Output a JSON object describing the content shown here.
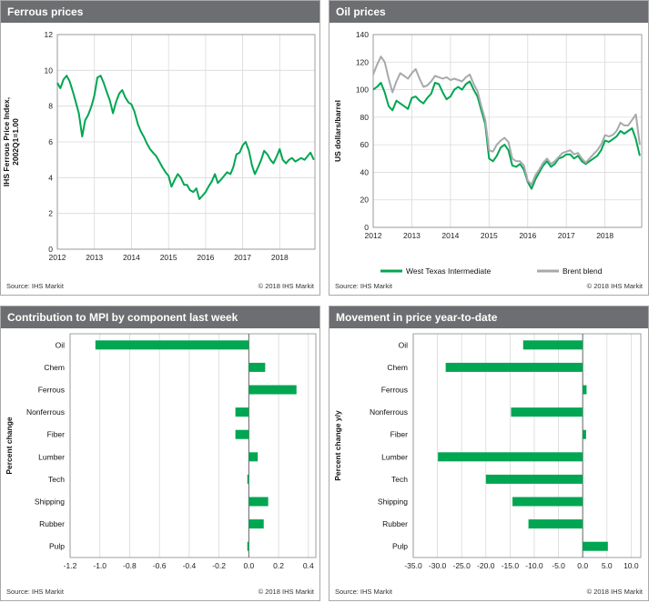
{
  "panels": {
    "p1": {
      "title": "Ferrous prices",
      "source": "Source: IHS Markit",
      "copyright": "© 2018 IHS Markit"
    },
    "p2": {
      "title": "Oil prices",
      "source": "Source: IHS Markit",
      "copyright": "© 2018 IHS Markit"
    },
    "p3": {
      "title": "Contribution to MPI by component last week",
      "source": "Source: IHS Markit",
      "copyright": "© 2018 IHS Markit"
    },
    "p4": {
      "title": "Movement in price year-to-date",
      "source": "Source: IHS Markit",
      "copyright": "© 2018 IHS Markit"
    }
  },
  "colors": {
    "green": "#00a651",
    "gray": "#a7a9ac",
    "grid": "#d9d9d9",
    "axis": "#555555"
  },
  "chart_data": [
    {
      "type": "line",
      "title": "Ferrous prices",
      "ylabel": "IHS Ferrous Price Index, 2002Q1=1.00",
      "xlabel": "",
      "xlim": [
        2012,
        2018.95
      ],
      "ylim": [
        0,
        12
      ],
      "yticks": [
        0,
        2,
        4,
        6,
        8,
        10,
        12
      ],
      "xticks": [
        2012,
        2013,
        2014,
        2015,
        2016,
        2017,
        2018
      ],
      "grid": true,
      "series": [
        {
          "name": "",
          "color": "#00a651",
          "x": [
            2012.0,
            2012.08,
            2012.17,
            2012.25,
            2012.33,
            2012.42,
            2012.5,
            2012.58,
            2012.67,
            2012.75,
            2012.83,
            2012.92,
            2013.0,
            2013.08,
            2013.17,
            2013.25,
            2013.33,
            2013.42,
            2013.5,
            2013.58,
            2013.67,
            2013.75,
            2013.83,
            2013.92,
            2014.0,
            2014.08,
            2014.17,
            2014.25,
            2014.33,
            2014.42,
            2014.5,
            2014.58,
            2014.67,
            2014.75,
            2014.83,
            2014.92,
            2015.0,
            2015.08,
            2015.17,
            2015.25,
            2015.33,
            2015.42,
            2015.5,
            2015.58,
            2015.67,
            2015.75,
            2015.83,
            2015.92,
            2016.0,
            2016.08,
            2016.17,
            2016.25,
            2016.33,
            2016.42,
            2016.5,
            2016.58,
            2016.67,
            2016.75,
            2016.83,
            2016.92,
            2017.0,
            2017.08,
            2017.17,
            2017.25,
            2017.33,
            2017.42,
            2017.5,
            2017.58,
            2017.67,
            2017.75,
            2017.83,
            2017.92,
            2018.0,
            2018.08,
            2018.17,
            2018.25,
            2018.33,
            2018.42,
            2018.5,
            2018.58,
            2018.67,
            2018.75,
            2018.83,
            2018.92
          ],
          "y": [
            9.3,
            9.0,
            9.5,
            9.7,
            9.4,
            8.8,
            8.2,
            7.6,
            6.3,
            7.2,
            7.5,
            8.0,
            8.6,
            9.6,
            9.7,
            9.3,
            8.8,
            8.3,
            7.6,
            8.2,
            8.7,
            8.9,
            8.5,
            8.2,
            8.1,
            7.7,
            7.0,
            6.6,
            6.3,
            5.9,
            5.6,
            5.4,
            5.2,
            4.9,
            4.6,
            4.3,
            4.1,
            3.5,
            3.9,
            4.2,
            4.0,
            3.6,
            3.6,
            3.3,
            3.2,
            3.4,
            2.8,
            3.0,
            3.2,
            3.5,
            3.8,
            4.2,
            3.7,
            3.9,
            4.1,
            4.3,
            4.2,
            4.6,
            5.3,
            5.4,
            5.8,
            6.0,
            5.5,
            4.7,
            4.2,
            4.6,
            5.0,
            5.5,
            5.3,
            5.0,
            4.8,
            5.2,
            5.6,
            5.0,
            4.8,
            5.0,
            5.1,
            4.9,
            5.0,
            5.1,
            5.0,
            5.2,
            5.4,
            5.0
          ]
        }
      ]
    },
    {
      "type": "line",
      "title": "Oil prices",
      "ylabel": "US dollars/barrel",
      "xlabel": "",
      "xlim": [
        2012,
        2018.95
      ],
      "ylim": [
        0,
        140
      ],
      "yticks": [
        0,
        20,
        40,
        60,
        80,
        100,
        120,
        140
      ],
      "xticks": [
        2012,
        2013,
        2014,
        2015,
        2016,
        2017,
        2018
      ],
      "grid": true,
      "legend": "bottom",
      "series": [
        {
          "name": "West Texas Intermediate",
          "color": "#00a651",
          "x": [
            2012.0,
            2012.1,
            2012.2,
            2012.3,
            2012.4,
            2012.5,
            2012.6,
            2012.7,
            2012.8,
            2012.9,
            2013.0,
            2013.1,
            2013.2,
            2013.3,
            2013.4,
            2013.5,
            2013.6,
            2013.7,
            2013.8,
            2013.9,
            2014.0,
            2014.1,
            2014.2,
            2014.3,
            2014.4,
            2014.5,
            2014.6,
            2014.7,
            2014.8,
            2014.9,
            2015.0,
            2015.1,
            2015.2,
            2015.3,
            2015.4,
            2015.5,
            2015.6,
            2015.7,
            2015.8,
            2015.9,
            2016.0,
            2016.1,
            2016.2,
            2016.3,
            2016.4,
            2016.5,
            2016.6,
            2016.7,
            2016.8,
            2016.9,
            2017.0,
            2017.1,
            2017.2,
            2017.3,
            2017.4,
            2017.5,
            2017.6,
            2017.7,
            2017.8,
            2017.9,
            2018.0,
            2018.1,
            2018.2,
            2018.3,
            2018.4,
            2018.5,
            2018.6,
            2018.7,
            2018.8,
            2018.9
          ],
          "y": [
            100,
            102,
            105,
            98,
            88,
            85,
            92,
            90,
            88,
            86,
            94,
            95,
            92,
            90,
            94,
            97,
            105,
            104,
            98,
            93,
            95,
            100,
            102,
            100,
            104,
            106,
            100,
            95,
            85,
            75,
            50,
            48,
            52,
            58,
            60,
            56,
            45,
            44,
            46,
            42,
            33,
            28,
            35,
            40,
            45,
            48,
            44,
            46,
            50,
            51,
            53,
            53,
            50,
            52,
            48,
            46,
            48,
            50,
            52,
            56,
            63,
            62,
            64,
            66,
            70,
            68,
            70,
            72,
            64,
            52
          ]
        },
        {
          "name": "Brent blend",
          "color": "#a7a9ac",
          "x": [
            2012.0,
            2012.1,
            2012.2,
            2012.3,
            2012.4,
            2012.5,
            2012.6,
            2012.7,
            2012.8,
            2012.9,
            2013.0,
            2013.1,
            2013.2,
            2013.3,
            2013.4,
            2013.5,
            2013.6,
            2013.7,
            2013.8,
            2013.9,
            2014.0,
            2014.1,
            2014.2,
            2014.3,
            2014.4,
            2014.5,
            2014.6,
            2014.7,
            2014.8,
            2014.9,
            2015.0,
            2015.1,
            2015.2,
            2015.3,
            2015.4,
            2015.5,
            2015.6,
            2015.7,
            2015.8,
            2015.9,
            2016.0,
            2016.1,
            2016.2,
            2016.3,
            2016.4,
            2016.5,
            2016.6,
            2016.7,
            2016.8,
            2016.9,
            2017.0,
            2017.1,
            2017.2,
            2017.3,
            2017.4,
            2017.5,
            2017.6,
            2017.7,
            2017.8,
            2017.9,
            2018.0,
            2018.1,
            2018.2,
            2018.3,
            2018.4,
            2018.5,
            2018.6,
            2018.7,
            2018.8,
            2018.9
          ],
          "y": [
            111,
            118,
            124,
            120,
            108,
            98,
            106,
            112,
            110,
            108,
            112,
            115,
            108,
            102,
            103,
            106,
            110,
            109,
            108,
            109,
            107,
            108,
            107,
            106,
            109,
            111,
            104,
            99,
            88,
            78,
            56,
            55,
            60,
            63,
            65,
            62,
            50,
            48,
            48,
            45,
            34,
            31,
            38,
            42,
            47,
            50,
            46,
            48,
            51,
            54,
            55,
            56,
            53,
            54,
            50,
            47,
            50,
            53,
            56,
            60,
            67,
            66,
            67,
            70,
            76,
            74,
            74,
            78,
            82,
            60
          ]
        }
      ]
    },
    {
      "type": "bar",
      "orientation": "horizontal",
      "title": "Contribution to MPI by component last week",
      "ylabel": "Percent change",
      "categories": [
        "Oil",
        "Chem",
        "Ferrous",
        "Nonferrous",
        "Fiber",
        "Lumber",
        "Tech",
        "Shipping",
        "Rubber",
        "Pulp"
      ],
      "values": [
        -1.03,
        0.11,
        0.32,
        -0.09,
        -0.09,
        0.06,
        -0.01,
        0.13,
        0.1,
        -0.01
      ],
      "xlim": [
        -1.2,
        0.45
      ],
      "xticks": [
        -1.2,
        -1.0,
        -0.8,
        -0.6,
        -0.4,
        -0.2,
        0.0,
        0.2,
        0.4
      ],
      "xtick_labels": [
        "-1.2",
        "-1.0",
        "-0.8",
        "-0.6",
        "-0.4",
        "-0.2",
        "0.0",
        "0.2",
        "0.4"
      ],
      "grid": true
    },
    {
      "type": "bar",
      "orientation": "horizontal",
      "title": "Movement in price year-to-date",
      "ylabel": "Percent change y/y",
      "categories": [
        "Oil",
        "Chem",
        "Ferrous",
        "Nonferrous",
        "Fiber",
        "Lumber",
        "Tech",
        "Shipping",
        "Rubber",
        "Pulp"
      ],
      "values": [
        -12.3,
        -28.3,
        0.8,
        -14.8,
        0.7,
        -29.9,
        -20.0,
        -14.5,
        -11.2,
        5.2
      ],
      "xlim": [
        -35,
        12
      ],
      "xticks": [
        -35,
        -30,
        -25,
        -20,
        -15,
        -10,
        -5,
        0,
        5,
        10
      ],
      "xtick_labels": [
        "-35.0",
        "-30.0",
        "-25.0",
        "-20.0",
        "-15.0",
        "-10.0",
        "-5.0",
        "0.0",
        "5.0",
        "10.0"
      ],
      "grid": true
    }
  ]
}
